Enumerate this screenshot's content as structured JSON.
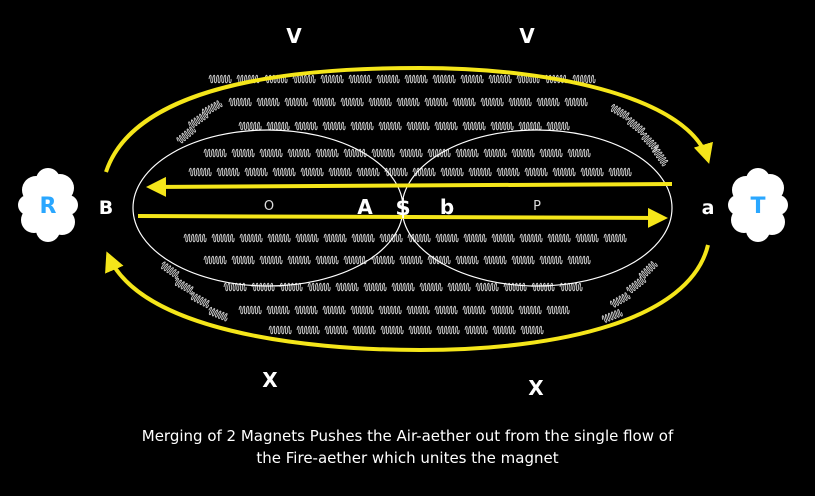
{
  "labels": {
    "v_left": "V",
    "v_right": "V",
    "x_left": "X",
    "x_right": "X",
    "b_upper": "B",
    "a_lower": "a",
    "o": "O",
    "a_upper": "A",
    "dollar": "$",
    "b_lower": "b",
    "p": "P",
    "r": "R",
    "t": "T"
  },
  "caption": {
    "line1": "Merging of 2 Magnets Pushes the Air-aether out from the single flow of",
    "line2": "the Fire-aether which unites the magnet"
  },
  "colors": {
    "background": "#000000",
    "arrow": "#f5e61a",
    "cloud_label": "#2aa7ff",
    "cloud": "#ffffff",
    "ellipse": "#ffffff",
    "coil": "#cfcfcf"
  }
}
